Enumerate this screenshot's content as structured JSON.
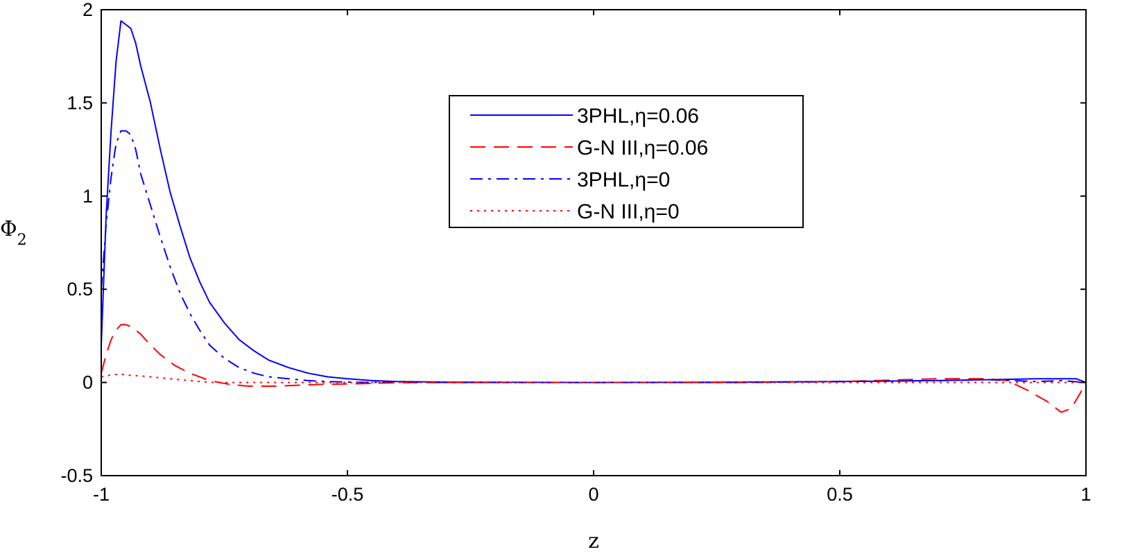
{
  "chart_data": {
    "type": "line",
    "title": "",
    "xlabel": "z",
    "ylabel": "Φ",
    "ylabel_subscript": "2",
    "xlim": [
      -1,
      1
    ],
    "ylim": [
      -0.5,
      2
    ],
    "xticks": [
      -1,
      -0.5,
      0,
      0.5,
      1
    ],
    "xtick_labels": [
      "-1",
      "-0.5",
      "0",
      "0.5",
      "1"
    ],
    "yticks": [
      -0.5,
      0,
      0.5,
      1,
      1.5,
      2
    ],
    "ytick_labels": [
      "-0.5",
      "0",
      "0.5",
      "1",
      "1.5",
      "2"
    ],
    "grid": false,
    "legend_position": "top-center",
    "series": [
      {
        "name": "3PHL,η=0.06",
        "color": "#0000ff",
        "style": "solid",
        "x": [
          -1,
          -0.99,
          -0.98,
          -0.97,
          -0.96,
          -0.95,
          -0.94,
          -0.93,
          -0.92,
          -0.9,
          -0.88,
          -0.86,
          -0.84,
          -0.82,
          -0.8,
          -0.78,
          -0.75,
          -0.72,
          -0.69,
          -0.66,
          -0.62,
          -0.58,
          -0.54,
          -0.5,
          -0.45,
          -0.4,
          -0.3,
          0,
          0.3,
          0.5,
          0.7,
          0.8,
          0.9,
          0.95,
          0.98,
          1
        ],
        "y": [
          0.2,
          0.9,
          1.35,
          1.72,
          1.94,
          1.92,
          1.9,
          1.82,
          1.7,
          1.5,
          1.25,
          1.02,
          0.84,
          0.67,
          0.54,
          0.43,
          0.32,
          0.23,
          0.17,
          0.12,
          0.08,
          0.05,
          0.03,
          0.02,
          0.01,
          0.005,
          0.002,
          0,
          0.002,
          0.005,
          0.01,
          0.015,
          0.02,
          0.02,
          0.02,
          0
        ]
      },
      {
        "name": "G-N III,η=0.06",
        "color": "#ff0000",
        "style": "dashed",
        "x": [
          -1,
          -0.99,
          -0.98,
          -0.97,
          -0.96,
          -0.95,
          -0.94,
          -0.93,
          -0.92,
          -0.9,
          -0.88,
          -0.85,
          -0.82,
          -0.78,
          -0.74,
          -0.7,
          -0.65,
          -0.6,
          -0.55,
          -0.5,
          -0.45,
          -0.4,
          -0.3,
          0,
          0.3,
          0.5,
          0.7,
          0.8,
          0.84,
          0.88,
          0.92,
          0.95,
          0.97,
          0.99,
          1
        ],
        "y": [
          0.05,
          0.15,
          0.23,
          0.28,
          0.31,
          0.31,
          0.3,
          0.28,
          0.26,
          0.2,
          0.15,
          0.09,
          0.05,
          0.01,
          -0.01,
          -0.02,
          -0.02,
          -0.015,
          -0.01,
          -0.008,
          -0.005,
          -0.002,
          0,
          0,
          0,
          0.005,
          0.02,
          0.02,
          0.01,
          -0.04,
          -0.1,
          -0.16,
          -0.14,
          -0.05,
          0
        ]
      },
      {
        "name": "3PHL,η=0",
        "color": "#0000ff",
        "style": "dashdot",
        "x": [
          -1,
          -0.99,
          -0.98,
          -0.97,
          -0.96,
          -0.95,
          -0.94,
          -0.93,
          -0.92,
          -0.9,
          -0.88,
          -0.86,
          -0.84,
          -0.82,
          -0.8,
          -0.78,
          -0.75,
          -0.72,
          -0.69,
          -0.66,
          -0.62,
          -0.58,
          -0.54,
          -0.5,
          -0.45,
          -0.4,
          -0.3,
          0,
          0.3,
          0.5,
          0.7,
          0.8,
          0.85,
          0.9,
          0.95,
          1
        ],
        "y": [
          0.5,
          0.85,
          1.1,
          1.28,
          1.35,
          1.35,
          1.33,
          1.25,
          1.12,
          0.95,
          0.78,
          0.62,
          0.48,
          0.37,
          0.28,
          0.2,
          0.13,
          0.08,
          0.05,
          0.03,
          0.02,
          0.01,
          0.005,
          0.002,
          0,
          0.005,
          0,
          0,
          0,
          0.005,
          0.01,
          0.015,
          0.01,
          0.005,
          0.01,
          0
        ]
      },
      {
        "name": "G-N III,η=0",
        "color": "#ff0000",
        "style": "dotted",
        "x": [
          -1,
          -0.98,
          -0.96,
          -0.95,
          -0.94,
          -0.92,
          -0.9,
          -0.88,
          -0.86,
          -0.84,
          -0.82,
          -0.8,
          -0.77,
          -0.74,
          -0.7,
          -0.65,
          -0.6,
          -0.5,
          -0.3,
          0,
          0.3,
          0.6,
          0.9,
          1
        ],
        "y": [
          0.03,
          0.04,
          0.045,
          0.04,
          0.038,
          0.035,
          0.03,
          0.025,
          0.02,
          0.015,
          0.01,
          0.005,
          0,
          0,
          0,
          0,
          0,
          0,
          0,
          0,
          0,
          0,
          0,
          0
        ]
      }
    ]
  }
}
